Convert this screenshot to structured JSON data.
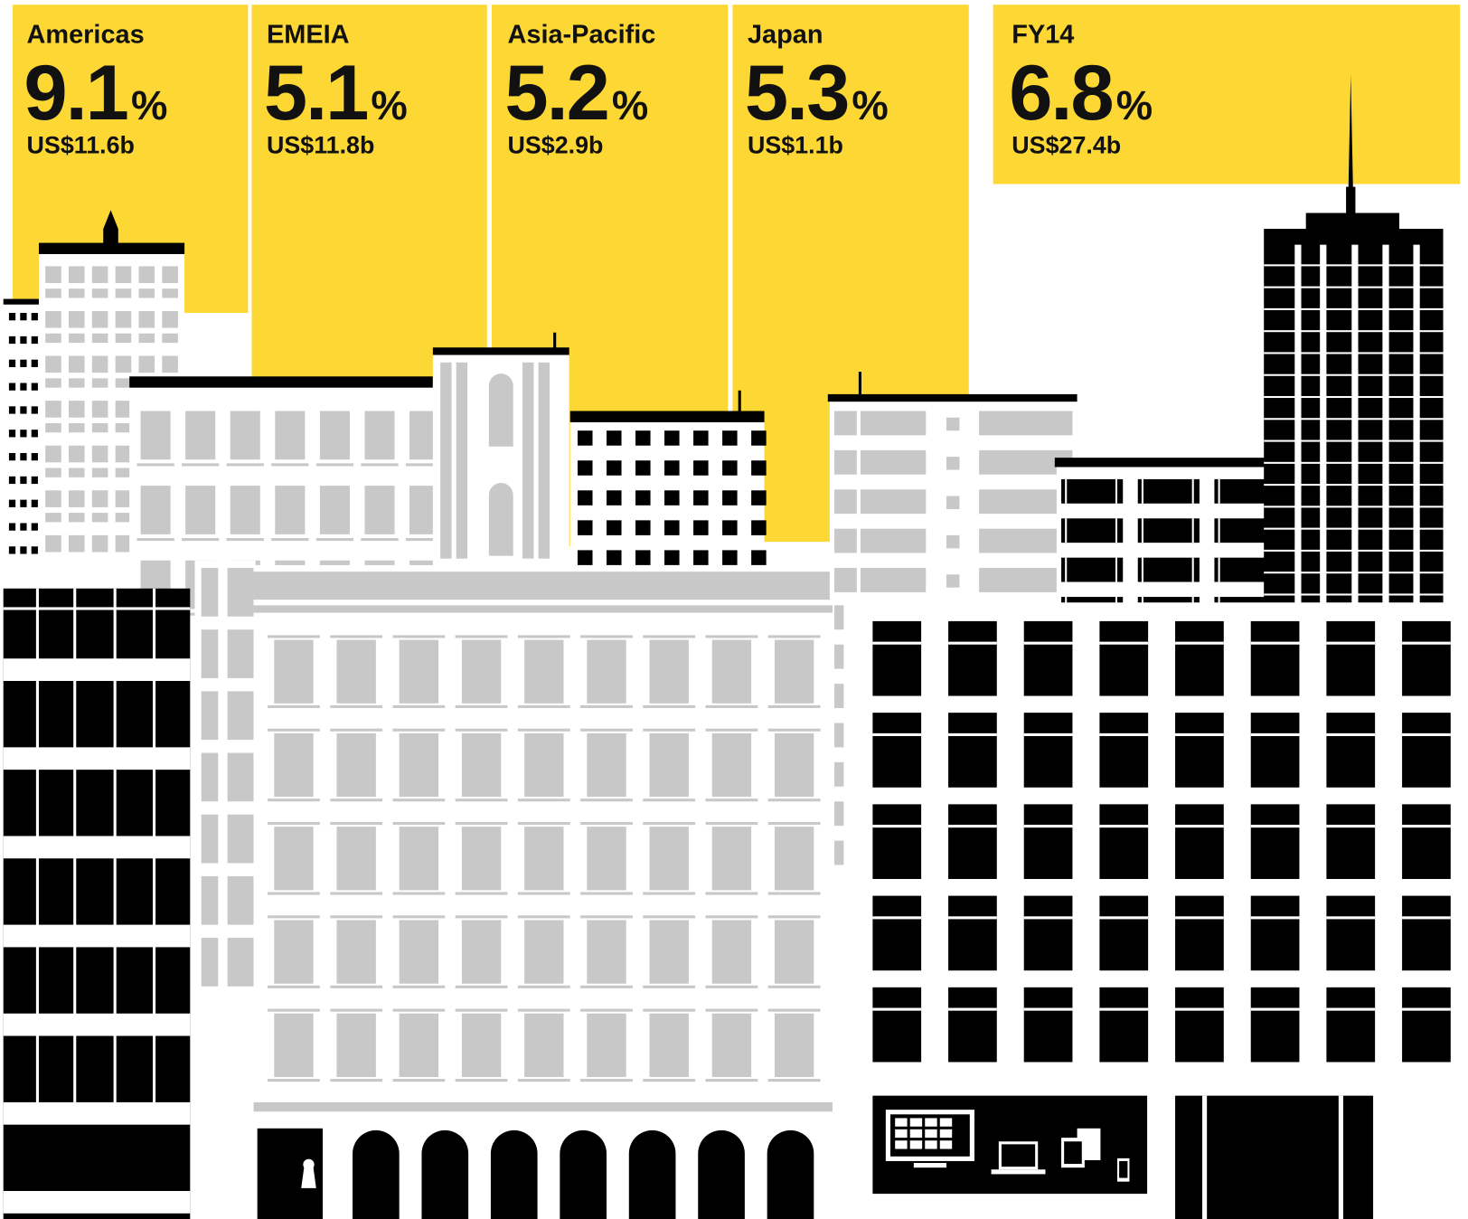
{
  "panels": [
    {
      "name": "Americas",
      "growth": "9.1",
      "unit": "%",
      "revenue": "US$11.6b"
    },
    {
      "name": "EMEIA",
      "growth": "5.1",
      "unit": "%",
      "revenue": "US$11.8b"
    },
    {
      "name": "Asia-Pacific",
      "growth": "5.2",
      "unit": "%",
      "revenue": "US$2.9b"
    },
    {
      "name": "Japan",
      "growth": "5.3",
      "unit": "%",
      "revenue": "US$1.1b"
    },
    {
      "name": "FY14",
      "growth": "6.8",
      "unit": "%",
      "revenue": "US$27.4b"
    }
  ]
}
